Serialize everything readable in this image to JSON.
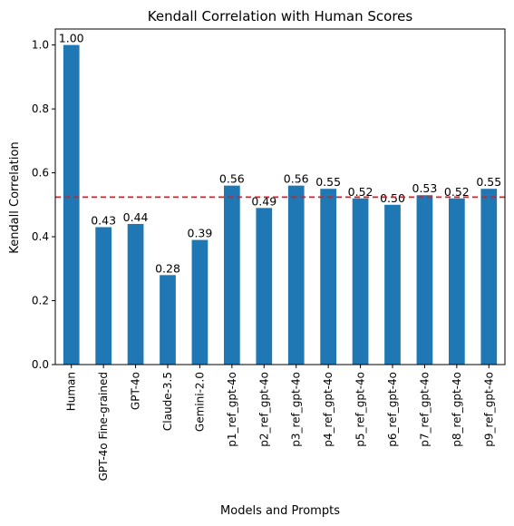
{
  "chart_data": {
    "type": "bar",
    "title": "Kendall Correlation with Human Scores",
    "xlabel": "Models and Prompts",
    "ylabel": "Kendall Correlation",
    "categories": [
      "Human",
      "GPT-4o Fine-grained",
      "GPT-4o",
      "Claude-3.5",
      "Gemini-2.0",
      "p1_ref_gpt-4o",
      "p2_ref_gpt-4o",
      "p3_ref_gpt-4o",
      "p4_ref_gpt-4o",
      "p5_ref_gpt-4o",
      "p6_ref_gpt-4o",
      "p7_ref_gpt-4o",
      "p8_ref_gpt-4o",
      "p9_ref_gpt-4o"
    ],
    "values": [
      1.0,
      0.43,
      0.44,
      0.28,
      0.39,
      0.56,
      0.49,
      0.56,
      0.55,
      0.52,
      0.5,
      0.53,
      0.52,
      0.55
    ],
    "data_labels": [
      "1.00",
      "0.43",
      "0.44",
      "0.28",
      "0.39",
      "0.56",
      "0.49",
      "0.56",
      "0.55",
      "0.52",
      "0.50",
      "0.53",
      "0.52",
      "0.55"
    ],
    "ylim": [
      0,
      1.05
    ],
    "yticks": [
      0.0,
      0.2,
      0.4,
      0.6,
      0.8,
      1.0
    ],
    "ytick_labels": [
      "0.0",
      "0.2",
      "0.4",
      "0.6",
      "0.8",
      "1.0"
    ],
    "reference_line": {
      "value": 0.524,
      "style": "dashed",
      "color": "#e41a1c"
    },
    "bar_color": "#1f77b4",
    "grid": false,
    "legend": "none"
  }
}
